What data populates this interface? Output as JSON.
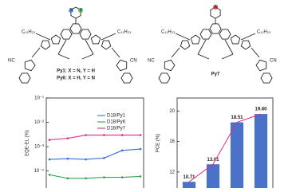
{
  "structures": [
    {
      "ring_atoms": [
        "X",
        "Y"
      ],
      "side_chains": [
        "C₁₁H₂₃",
        "C₁₁H₂₃"
      ],
      "end_groups": [
        "NC",
        "CN"
      ],
      "labels": [
        "Py1: X = N, Y = H",
        "Py6: X = H, Y = N"
      ]
    },
    {
      "ring_atoms": [
        "N"
      ],
      "side_chains": [
        "C₁₁H₂₃",
        "C₁₁H₂₃"
      ],
      "end_groups": [
        "NC",
        "CN"
      ],
      "labels": [
        "Py7"
      ]
    }
  ],
  "chart_data": [
    {
      "type": "line",
      "y_label": "EQE-EL (%)",
      "log_y": true,
      "categories": [
        null,
        null,
        null,
        null,
        null,
        null
      ],
      "ylim": [
        2e-05,
        0.1
      ],
      "yticks": [
        {
          "value": 0.1,
          "label": "10⁻¹"
        },
        {
          "value": 0.01,
          "label": "10⁻²"
        },
        {
          "value": 0.001,
          "label": "10⁻³"
        },
        {
          "value": 0.0001,
          "label": "10⁻⁴"
        }
      ],
      "legend": "upper right",
      "series": [
        {
          "name": "D18/Py1",
          "color": "#3b6fd4",
          "values": [
            0.0003,
            0.00032,
            0.0003,
            0.00034,
            0.0007,
            0.0008
          ]
        },
        {
          "name": "D18/Py6",
          "color": "#2aa84a",
          "values": [
            7e-05,
            5e-05,
            5e-05,
            5.5e-05,
            5.5e-05,
            6e-05
          ]
        },
        {
          "name": "D18/Py7",
          "color": "#e0288a",
          "values": [
            0.0019,
            0.0022,
            0.003,
            0.003,
            0.003,
            0.003
          ]
        }
      ]
    },
    {
      "type": "bar",
      "y_label": "PCE (%)",
      "categories": [
        null,
        null,
        null,
        null
      ],
      "values": [
        10.71,
        13.01,
        18.51,
        19.6
      ],
      "value_labels": [
        "10.71",
        "13.01",
        "18.51",
        "19.60"
      ],
      "color": "#4a72c8",
      "trend_color": "#e0288a",
      "ylim": [
        9.9,
        21.7
      ],
      "yticks": [
        12,
        16,
        20
      ]
    }
  ]
}
